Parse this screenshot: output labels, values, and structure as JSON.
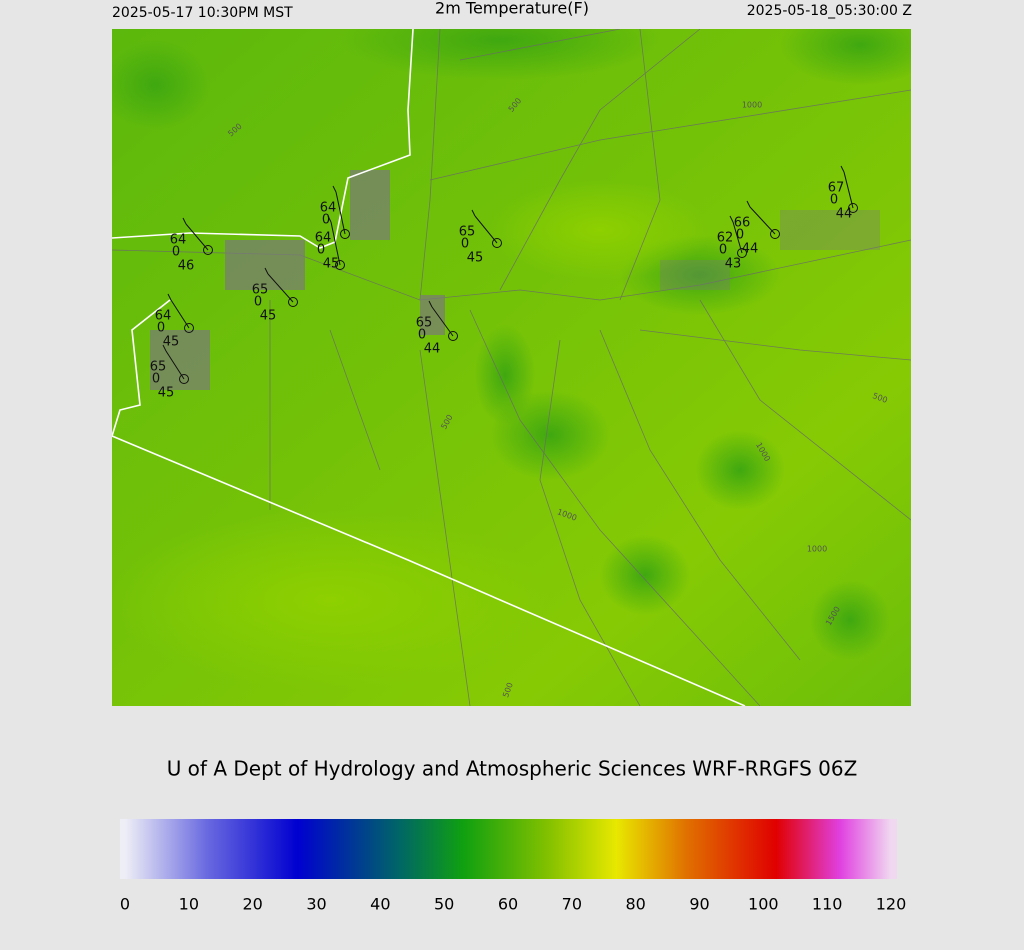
{
  "header": {
    "left": "2025-05-17 10:30PM MST",
    "title": "2m Temperature(F)",
    "right": "2025-05-18_05:30:00 Z"
  },
  "credit": "U of A Dept of Hydrology and Atmospheric Sciences WRF-RRGFS 06Z",
  "stations": [
    {
      "temp": "64",
      "code": "0",
      "dew": "46"
    },
    {
      "temp": "64",
      "code": "0"
    },
    {
      "temp": "64",
      "code": "0",
      "dew": "45"
    },
    {
      "temp": "65",
      "code": "0",
      "dew": "45"
    },
    {
      "temp": "64",
      "code": "0",
      "dew": "45"
    },
    {
      "temp": "65",
      "code": "0",
      "dew": "45"
    },
    {
      "temp": "65",
      "code": "0",
      "dew": "45"
    },
    {
      "temp": "65",
      "code": "0",
      "dew": "44"
    },
    {
      "temp": "67",
      "code": "0",
      "dew": "44"
    },
    {
      "temp": "66",
      "code": "0",
      "dew": "44"
    },
    {
      "temp": "62",
      "code": "0",
      "dew": "43"
    }
  ],
  "contour_labels": [
    "500",
    "500",
    "500",
    "500",
    "500",
    "1000",
    "1000",
    "1000",
    "1000",
    "1500"
  ],
  "colorbar": {
    "ticks": [
      0,
      10,
      20,
      30,
      40,
      50,
      60,
      70,
      80,
      90,
      100,
      110,
      120
    ],
    "stops": [
      {
        "value": 0,
        "color": "#eeeef6"
      },
      {
        "value": 13,
        "color": "#6868e0"
      },
      {
        "value": 27,
        "color": "#0000d0"
      },
      {
        "value": 43,
        "color": "#006666"
      },
      {
        "value": 53,
        "color": "#10a010"
      },
      {
        "value": 66,
        "color": "#80c000"
      },
      {
        "value": 77,
        "color": "#e8e800"
      },
      {
        "value": 88,
        "color": "#e07000"
      },
      {
        "value": 102,
        "color": "#e00000"
      },
      {
        "value": 112,
        "color": "#e040e0"
      },
      {
        "value": 120,
        "color": "#f0d8f0"
      }
    ]
  }
}
